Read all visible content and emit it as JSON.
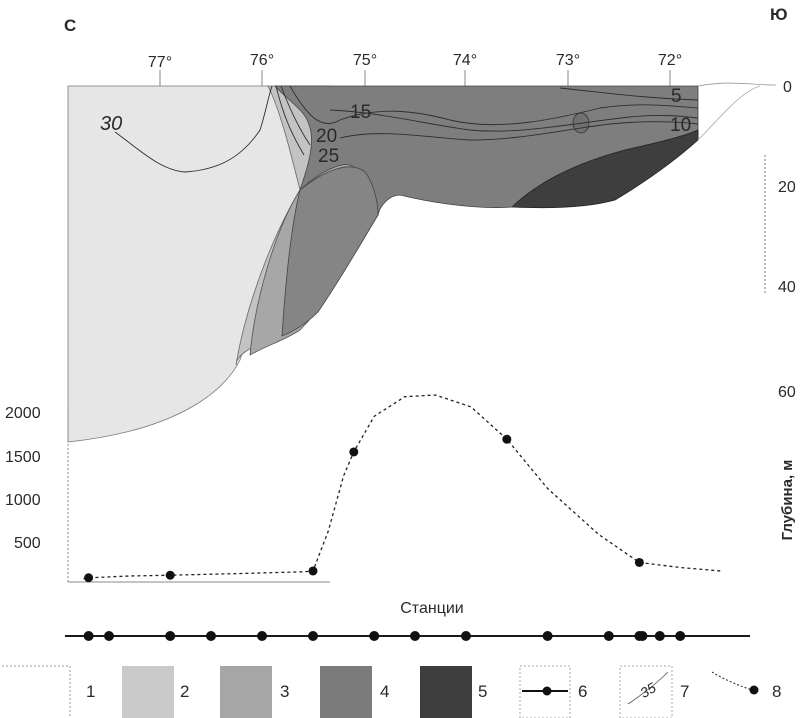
{
  "chart_data": [
    {
      "type": "area",
      "corner_labels": {
        "north": "С",
        "south": "Ю"
      },
      "x_ticks": [
        "77°",
        "76°",
        "75°",
        "74°",
        "73°",
        "72°"
      ],
      "depth_ticks": [
        "0",
        "20",
        "40",
        "60"
      ],
      "contour_labels": [
        "30",
        "15",
        "20",
        "25",
        "5",
        "10"
      ],
      "fill_colors": [
        "#e6e6e6",
        "#bdbdbd",
        "#9a9a9a",
        "#7a7a7a",
        "#3e3e3e"
      ],
      "ylabel": "Глубина, м"
    },
    {
      "type": "line",
      "y_ticks": [
        "2000",
        "1500",
        "1000",
        "500"
      ],
      "points": [
        {
          "lat": 77.7,
          "value": 50
        },
        {
          "lat": 76.9,
          "value": 80
        },
        {
          "lat": 75.5,
          "value": 130
        },
        {
          "lat": 75.1,
          "value": 1530
        },
        {
          "lat": 73.6,
          "value": 1680
        },
        {
          "lat": 72.3,
          "value": 230
        }
      ]
    }
  ],
  "stations": {
    "label": "Станции",
    "lats": [
      77.7,
      77.5,
      76.9,
      76.5,
      76.0,
      75.5,
      74.9,
      74.5,
      74.0,
      73.2,
      72.6,
      72.3,
      72.27,
      72.1,
      71.9
    ]
  },
  "legend": {
    "items": [
      "1",
      "2",
      "3",
      "4",
      "5",
      "6",
      "7",
      "8"
    ],
    "sample_35": "35"
  },
  "colors": {
    "station_line": "#1a1a1a",
    "dashed": "#222222",
    "border": "#555555"
  }
}
